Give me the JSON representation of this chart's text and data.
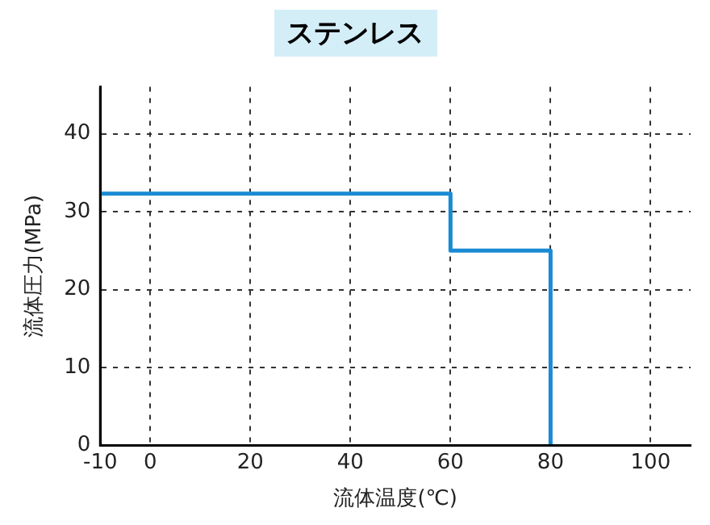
{
  "chart_data": {
    "type": "line",
    "title": "ステンレス",
    "xlabel": "流体温度(℃)",
    "ylabel": "流体圧力(MPa)",
    "x": [
      -10,
      60,
      60,
      80,
      80
    ],
    "series": [
      {
        "color": "#1a8ad4",
        "values": [
          32.3,
          32.3,
          25,
          25,
          0
        ]
      }
    ],
    "xlim": [
      -10,
      108
    ],
    "xticks": [
      -10,
      0,
      20,
      40,
      60,
      80,
      100
    ],
    "ylim": [
      0,
      46
    ],
    "yticks": [
      0,
      10,
      20,
      30,
      40
    ],
    "grid": true,
    "legend": false,
    "marker": "none",
    "line_style": "solid"
  }
}
